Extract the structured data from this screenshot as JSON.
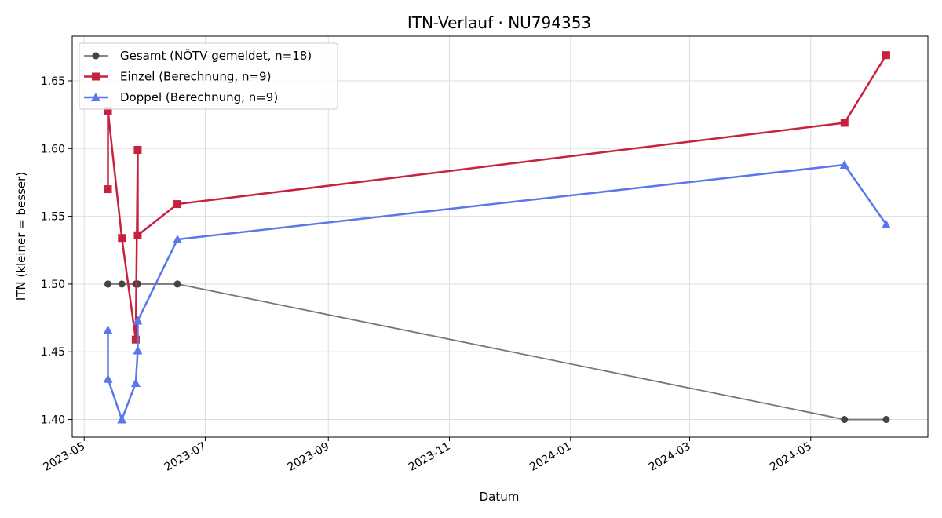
{
  "chart_data": {
    "type": "line",
    "title": "ITN-Verlauf · NU794353",
    "xlabel": "Datum",
    "ylabel": "ITN  (kleiner = besser)",
    "x_axis_type": "date",
    "xlim": [
      "2023-04-25",
      "2024-06-29"
    ],
    "ylim": [
      1.387,
      1.683
    ],
    "xticks": [
      "2023-05",
      "2023-07",
      "2023-09",
      "2023-11",
      "2024-01",
      "2024-03",
      "2024-05"
    ],
    "xtick_dates": [
      "2023-05-01",
      "2023-07-01",
      "2023-09-01",
      "2023-11-01",
      "2024-01-01",
      "2024-03-01",
      "2024-05-01"
    ],
    "yticks": [
      "1.40",
      "1.45",
      "1.50",
      "1.55",
      "1.60",
      "1.65"
    ],
    "ytick_values": [
      1.4,
      1.45,
      1.5,
      1.55,
      1.6,
      1.65
    ],
    "grid": true,
    "legend_position": "top-left",
    "series": [
      {
        "name": "Gesamt (NÖTV gemeldet, n=18)",
        "color": "#777777",
        "marker_color": "#444444",
        "marker": "circle",
        "points": [
          {
            "x": "2023-05-13",
            "y": 1.5
          },
          {
            "x": "2023-05-13",
            "y": 1.5
          },
          {
            "x": "2023-05-20",
            "y": 1.5
          },
          {
            "x": "2023-05-27",
            "y": 1.5
          },
          {
            "x": "2023-05-28",
            "y": 1.5
          },
          {
            "x": "2023-05-28",
            "y": 1.5
          },
          {
            "x": "2023-06-17",
            "y": 1.5
          },
          {
            "x": "2024-05-18",
            "y": 1.4
          },
          {
            "x": "2024-06-08",
            "y": 1.4
          }
        ]
      },
      {
        "name": "Einzel (Berechnung, n=9)",
        "color": "#c8203f",
        "marker": "square",
        "points": [
          {
            "x": "2023-05-13",
            "y": 1.57
          },
          {
            "x": "2023-05-13",
            "y": 1.628
          },
          {
            "x": "2023-05-20",
            "y": 1.534
          },
          {
            "x": "2023-05-27",
            "y": 1.459
          },
          {
            "x": "2023-05-28",
            "y": 1.599
          },
          {
            "x": "2023-05-28",
            "y": 1.536
          },
          {
            "x": "2023-06-17",
            "y": 1.559
          },
          {
            "x": "2024-05-18",
            "y": 1.619
          },
          {
            "x": "2024-06-08",
            "y": 1.669
          }
        ]
      },
      {
        "name": "Doppel (Berechnung, n=9)",
        "color": "#5b78ea",
        "marker": "triangle",
        "points": [
          {
            "x": "2023-05-13",
            "y": 1.466
          },
          {
            "x": "2023-05-13",
            "y": 1.43
          },
          {
            "x": "2023-05-20",
            "y": 1.4
          },
          {
            "x": "2023-05-27",
            "y": 1.427
          },
          {
            "x": "2023-05-28",
            "y": 1.451
          },
          {
            "x": "2023-05-28",
            "y": 1.473
          },
          {
            "x": "2023-06-17",
            "y": 1.533
          },
          {
            "x": "2024-05-18",
            "y": 1.588
          },
          {
            "x": "2024-06-08",
            "y": 1.544
          }
        ]
      }
    ]
  }
}
